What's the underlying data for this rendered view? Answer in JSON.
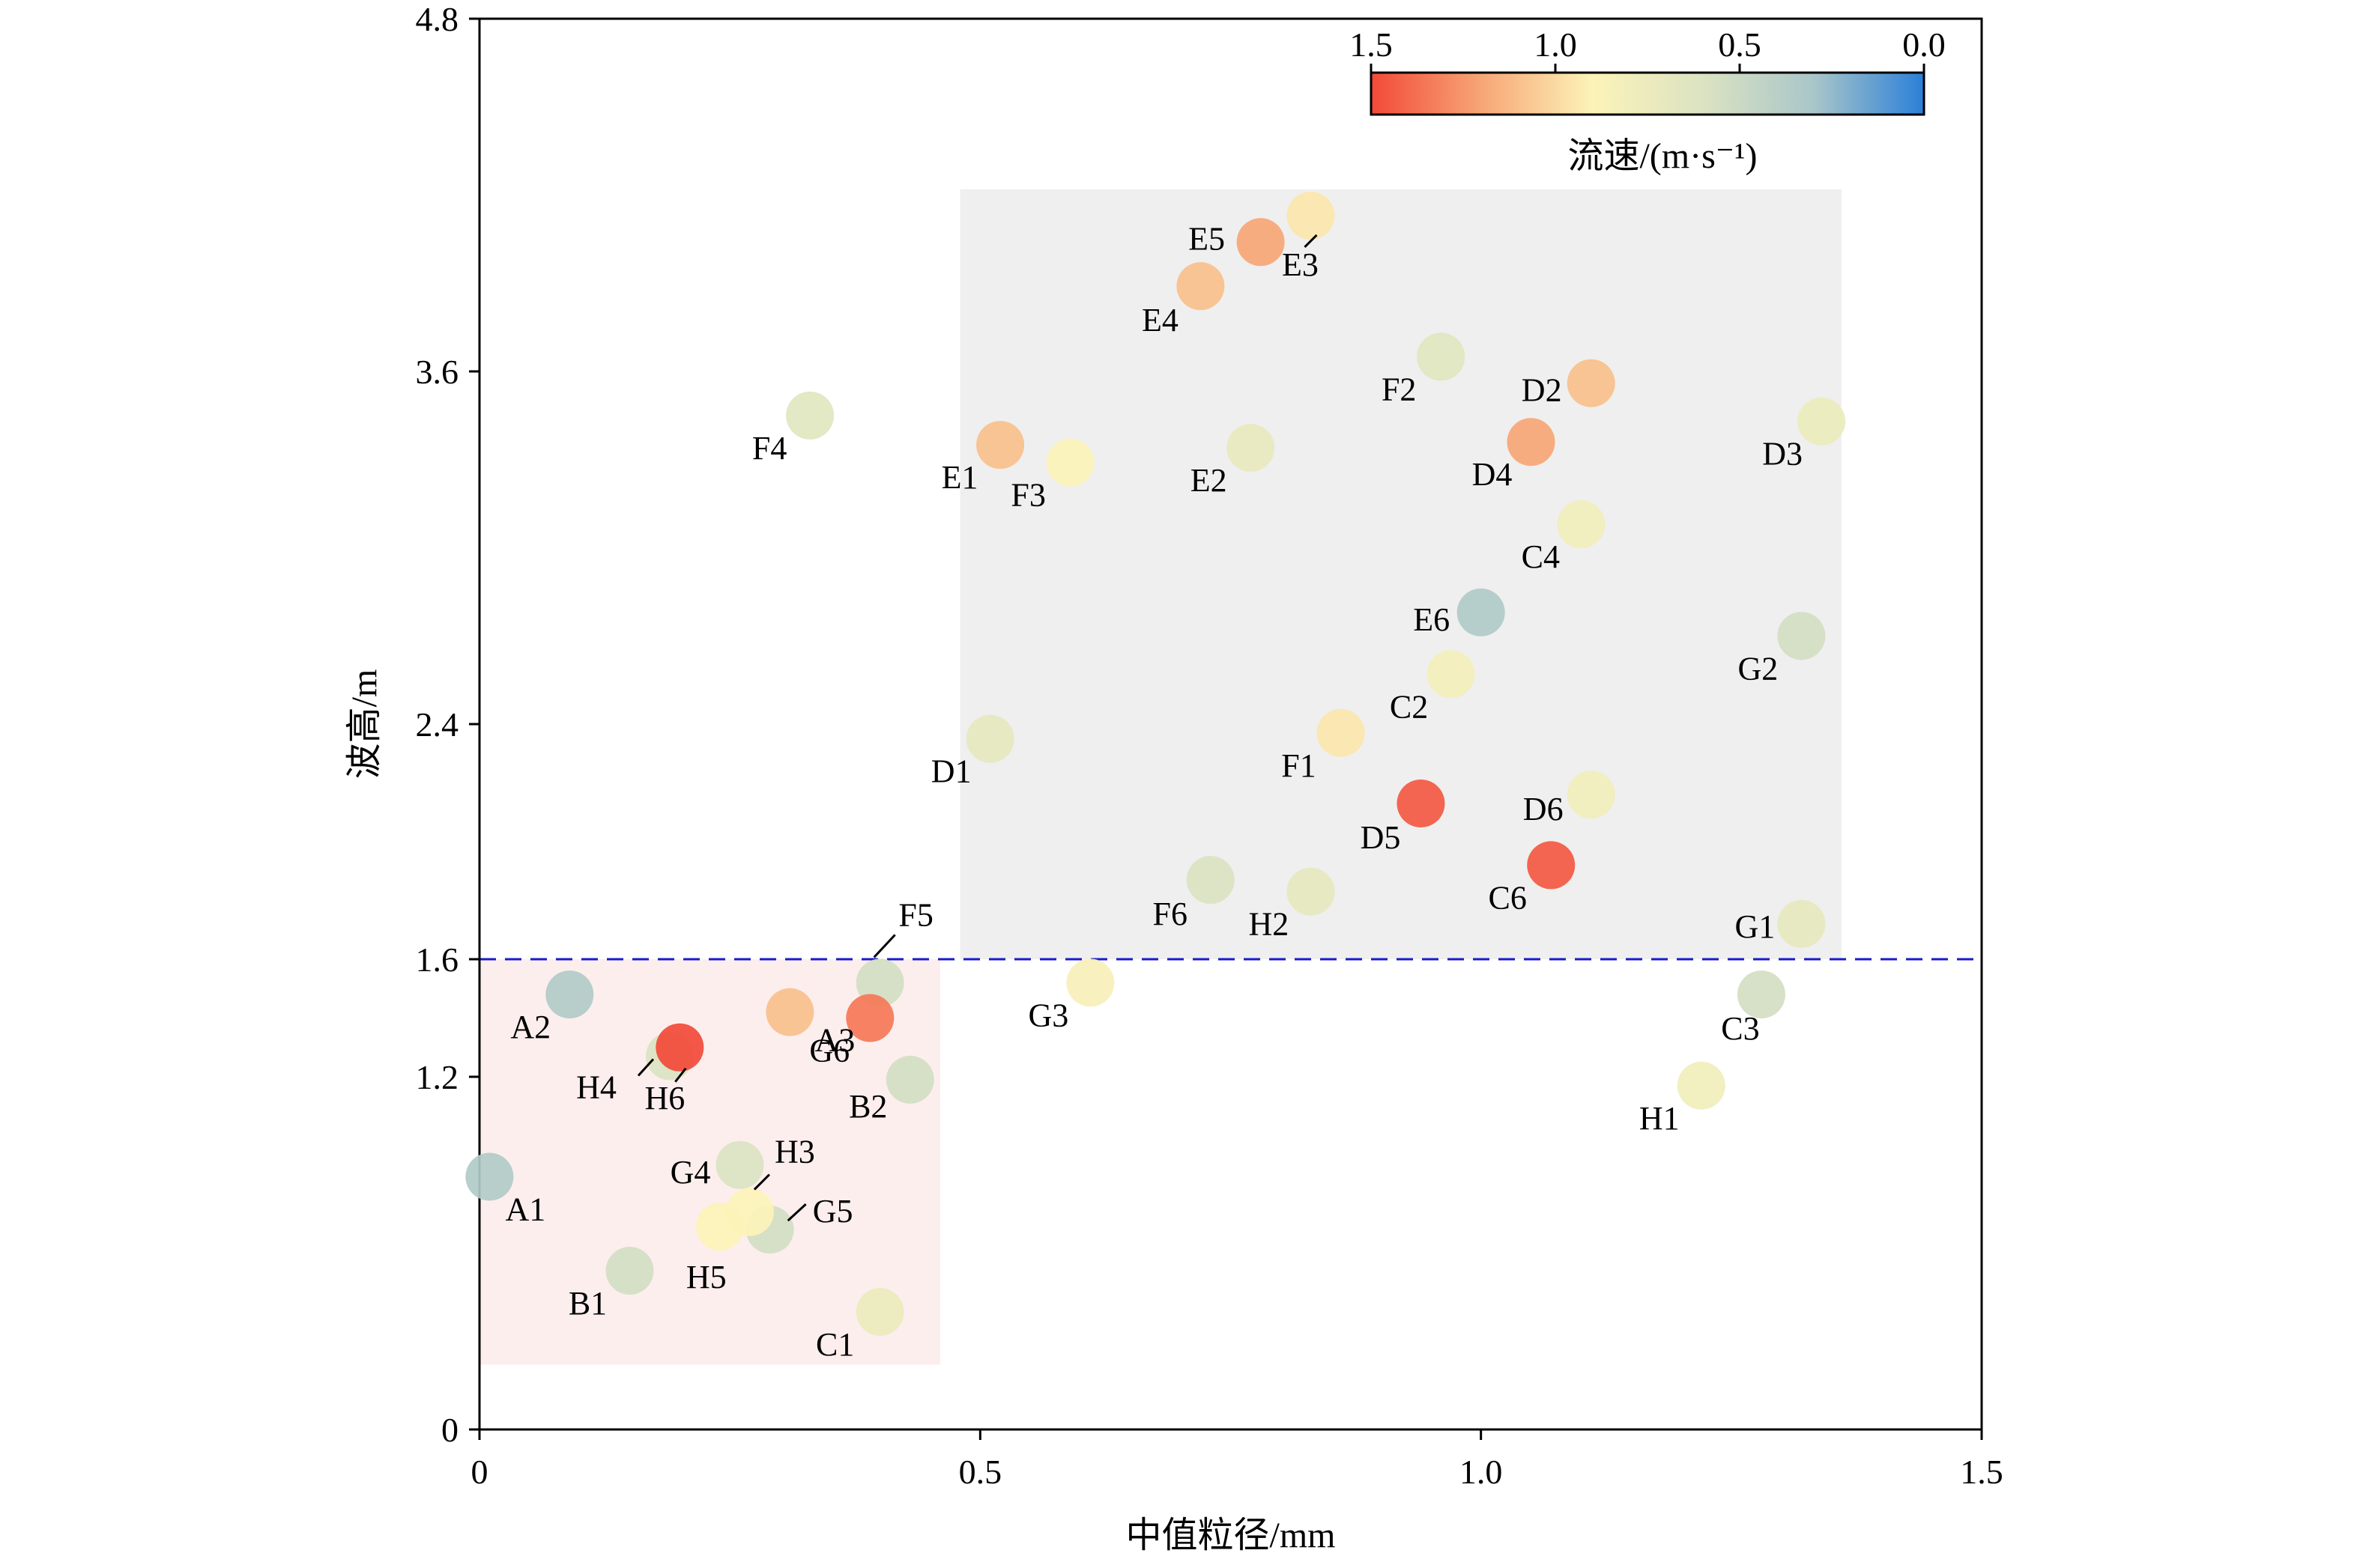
{
  "chart_data": {
    "type": "scatter",
    "xlabel": "中值粒径/mm",
    "ylabel": "波高/m",
    "xlim": [
      0,
      1.5
    ],
    "ylim": [
      0,
      4.8
    ],
    "xticks": [
      0,
      0.5,
      1.0,
      1.5
    ],
    "xtick_labels": [
      "0",
      "0.5",
      "1.0",
      "1.5"
    ],
    "yticks": [
      0,
      1.2,
      1.6,
      2.4,
      3.6,
      4.8
    ],
    "ytick_labels": [
      "0",
      "1.2",
      "1.6",
      "2.4",
      "3.6",
      "4.8"
    ],
    "threshold_line": {
      "y": 1.6,
      "label": "1.6",
      "style": "dashed",
      "color": "#1a1acc"
    },
    "regions": [
      {
        "id": "low-region",
        "x": [
          0,
          0.46
        ],
        "y": [
          0.22,
          1.6
        ],
        "color": "#fdeeee"
      },
      {
        "id": "high-region",
        "x": [
          0.48,
          1.36
        ],
        "y": [
          1.6,
          4.22
        ],
        "color": "#efefef"
      }
    ],
    "colorbar": {
      "title": "流速/(m·s⁻¹)",
      "min": 0.0,
      "max": 1.5,
      "ticks": [
        1.5,
        1.0,
        0.5,
        0.0
      ],
      "tick_labels": [
        "1.5",
        "1.0",
        "0.5",
        "0.0"
      ],
      "orientation": "horizontal",
      "position": "top-right",
      "colors": [
        "#f24a38",
        "#f7a676",
        "#fcf3b8",
        "#dbe3c2",
        "#a9c6c9",
        "#2b7fd8"
      ]
    },
    "points": [
      {
        "label": "A1",
        "x": 0.01,
        "y": 0.86,
        "v": 0.35
      },
      {
        "label": "A2",
        "x": 0.09,
        "y": 1.48,
        "v": 0.35
      },
      {
        "label": "A3",
        "x": 0.31,
        "y": 1.42,
        "v": 1.1
      },
      {
        "label": "B1",
        "x": 0.15,
        "y": 0.54,
        "v": 0.55
      },
      {
        "label": "B2",
        "x": 0.43,
        "y": 1.19,
        "v": 0.55
      },
      {
        "label": "C1",
        "x": 0.4,
        "y": 0.4,
        "v": 0.75
      },
      {
        "label": "C2",
        "x": 0.97,
        "y": 2.57,
        "v": 0.82
      },
      {
        "label": "C3",
        "x": 1.28,
        "y": 1.48,
        "v": 0.55
      },
      {
        "label": "C4",
        "x": 1.1,
        "y": 3.08,
        "v": 0.8
      },
      {
        "label": "C6",
        "x": 1.07,
        "y": 1.92,
        "v": 1.45
      },
      {
        "label": "D1",
        "x": 0.51,
        "y": 2.35,
        "v": 0.7
      },
      {
        "label": "D2",
        "x": 1.11,
        "y": 3.56,
        "v": 1.1
      },
      {
        "label": "D3",
        "x": 1.34,
        "y": 3.43,
        "v": 0.75
      },
      {
        "label": "D4",
        "x": 1.05,
        "y": 3.36,
        "v": 1.2
      },
      {
        "label": "D5",
        "x": 0.94,
        "y": 2.13,
        "v": 1.45
      },
      {
        "label": "D6",
        "x": 1.11,
        "y": 2.16,
        "v": 0.8
      },
      {
        "label": "E1",
        "x": 0.52,
        "y": 3.35,
        "v": 1.1
      },
      {
        "label": "E2",
        "x": 0.77,
        "y": 3.34,
        "v": 0.72
      },
      {
        "label": "E3",
        "x": 0.83,
        "y": 4.13,
        "v": 0.95
      },
      {
        "label": "E4",
        "x": 0.72,
        "y": 3.89,
        "v": 1.1
      },
      {
        "label": "E5",
        "x": 0.78,
        "y": 4.04,
        "v": 1.2
      },
      {
        "label": "E6",
        "x": 1.0,
        "y": 2.78,
        "v": 0.35
      },
      {
        "label": "F1",
        "x": 0.86,
        "y": 2.37,
        "v": 0.95
      },
      {
        "label": "F2",
        "x": 0.96,
        "y": 3.65,
        "v": 0.65
      },
      {
        "label": "F3",
        "x": 0.59,
        "y": 3.29,
        "v": 0.9
      },
      {
        "label": "F4",
        "x": 0.33,
        "y": 3.45,
        "v": 0.65
      },
      {
        "label": "F5",
        "x": 0.4,
        "y": 1.52,
        "v": 0.55
      },
      {
        "label": "F6",
        "x": 0.73,
        "y": 1.87,
        "v": 0.6
      },
      {
        "label": "G1",
        "x": 1.32,
        "y": 1.72,
        "v": 0.7
      },
      {
        "label": "G2",
        "x": 1.32,
        "y": 2.7,
        "v": 0.55
      },
      {
        "label": "G3",
        "x": 0.61,
        "y": 1.52,
        "v": 0.85
      },
      {
        "label": "G4",
        "x": 0.26,
        "y": 0.9,
        "v": 0.6
      },
      {
        "label": "G5",
        "x": 0.29,
        "y": 0.68,
        "v": 0.55
      },
      {
        "label": "G6",
        "x": 0.39,
        "y": 1.4,
        "v": 1.35
      },
      {
        "label": "H1",
        "x": 1.22,
        "y": 1.17,
        "v": 0.8
      },
      {
        "label": "H2",
        "x": 0.83,
        "y": 1.83,
        "v": 0.7
      },
      {
        "label": "H3",
        "x": 0.27,
        "y": 0.74,
        "v": 0.9
      },
      {
        "label": "H4",
        "x": 0.19,
        "y": 1.27,
        "v": 0.6
      },
      {
        "label": "H5",
        "x": 0.24,
        "y": 0.69,
        "v": 0.9
      },
      {
        "label": "H6",
        "x": 0.2,
        "y": 1.3,
        "v": 1.5
      }
    ]
  }
}
